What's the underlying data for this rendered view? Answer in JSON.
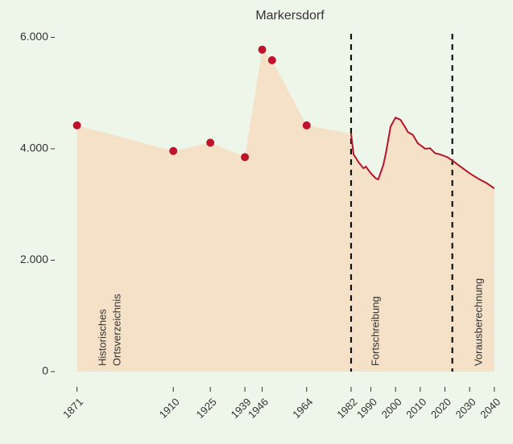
{
  "chart_data": {
    "type": "line",
    "title": "Markersdorf",
    "series": [
      {
        "name": "Historisches Ortsverzeichnis",
        "color": "#c0122c",
        "x": [
          1871,
          1910,
          1925,
          1939,
          1946,
          1950,
          1964
        ],
        "values": [
          4420,
          3960,
          4110,
          3850,
          5780,
          5590,
          4420
        ]
      },
      {
        "name": "Fortschreibung",
        "color": "#b5152b",
        "x": [
          1982,
          1983,
          1985,
          1987,
          1988,
          1990,
          1992,
          1993,
          1995,
          1996,
          1998,
          2000,
          2002,
          2004,
          2005,
          2007,
          2009,
          2012,
          2014,
          2016,
          2018,
          2021,
          2023
        ],
        "values": [
          4270,
          3900,
          3760,
          3650,
          3680,
          3560,
          3470,
          3450,
          3700,
          3900,
          4400,
          4560,
          4520,
          4380,
          4300,
          4250,
          4100,
          4000,
          4010,
          3920,
          3900,
          3850,
          3790
        ]
      },
      {
        "name": "Vorausberechnung",
        "color": "#b5152b",
        "x": [
          2023,
          2026,
          2030,
          2034,
          2037,
          2040
        ],
        "values": [
          3790,
          3690,
          3560,
          3450,
          3380,
          3290
        ]
      }
    ],
    "vlines": [
      1982,
      2023
    ],
    "annotations": [
      [
        "Historisches",
        "Ortsverzeichnis"
      ],
      [
        "Fortschreibung"
      ],
      [
        "Vorausberechnung"
      ]
    ],
    "area_color": "#f5e0c8",
    "xlim": [
      1862,
      2043
    ],
    "ylim": [
      -250,
      6170
    ],
    "xticks": [
      1871,
      1910,
      1925,
      1939,
      1946,
      1964,
      1982,
      1990,
      2000,
      2010,
      2020,
      2030,
      2040
    ],
    "yticks": [
      0,
      {
        "value": 2000,
        "label": "2.000"
      },
      {
        "value": 4000,
        "label": "4.000"
      },
      {
        "value": 6000,
        "label": "6.000"
      }
    ]
  }
}
